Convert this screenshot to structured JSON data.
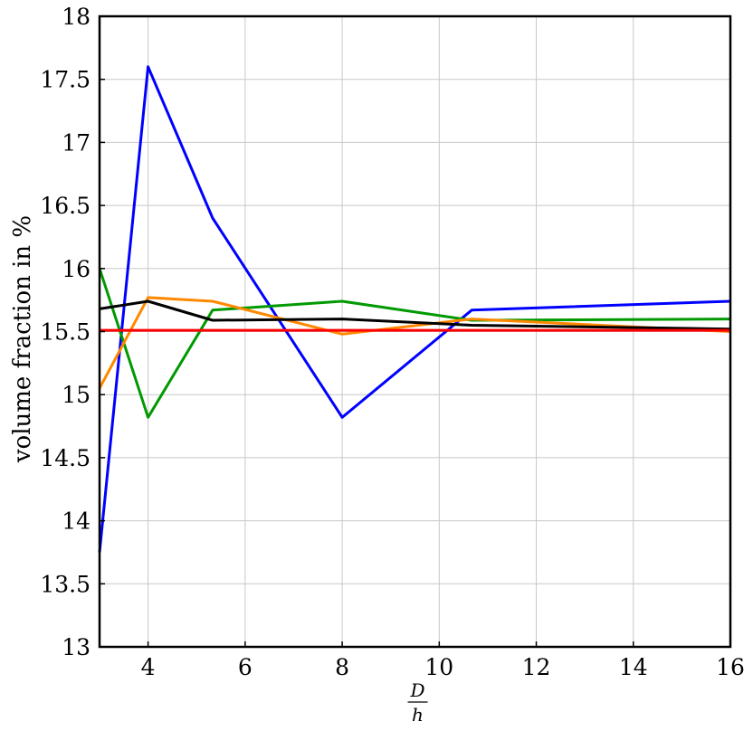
{
  "chart_data": {
    "type": "line",
    "title": "",
    "xlabel_numerator": "D",
    "xlabel_denominator": "h",
    "ylabel": "volume fraction in %",
    "xlim": [
      3,
      16
    ],
    "ylim": [
      13,
      18
    ],
    "x_ticks": [
      4,
      6,
      8,
      10,
      12,
      14,
      16
    ],
    "y_ticks": [
      13,
      13.5,
      14,
      14.5,
      15,
      15.5,
      16,
      16.5,
      17,
      17.5,
      18
    ],
    "grid": true,
    "legend": "none",
    "series": [
      {
        "color": "#0000ff",
        "x": [
          3,
          4,
          5.33,
          8,
          10.67,
          16
        ],
        "y": [
          13.75,
          17.6,
          16.4,
          14.82,
          15.67,
          15.74
        ]
      },
      {
        "color": "#009900",
        "x": [
          3,
          4,
          5.33,
          8,
          10.67,
          16
        ],
        "y": [
          16.0,
          14.82,
          15.67,
          15.74,
          15.59,
          15.6
        ]
      },
      {
        "color": "#ff8800",
        "x": [
          3,
          4,
          5.33,
          8,
          10.67,
          16
        ],
        "y": [
          15.05,
          15.77,
          15.74,
          15.48,
          15.6,
          15.5
        ]
      },
      {
        "color": "#000000",
        "x": [
          3,
          4,
          5.33,
          8,
          10.67,
          16
        ],
        "y": [
          15.68,
          15.74,
          15.59,
          15.6,
          15.55,
          15.52
        ]
      },
      {
        "color": "#ff0000",
        "x": [
          3,
          16
        ],
        "y": [
          15.51,
          15.51
        ]
      }
    ]
  }
}
